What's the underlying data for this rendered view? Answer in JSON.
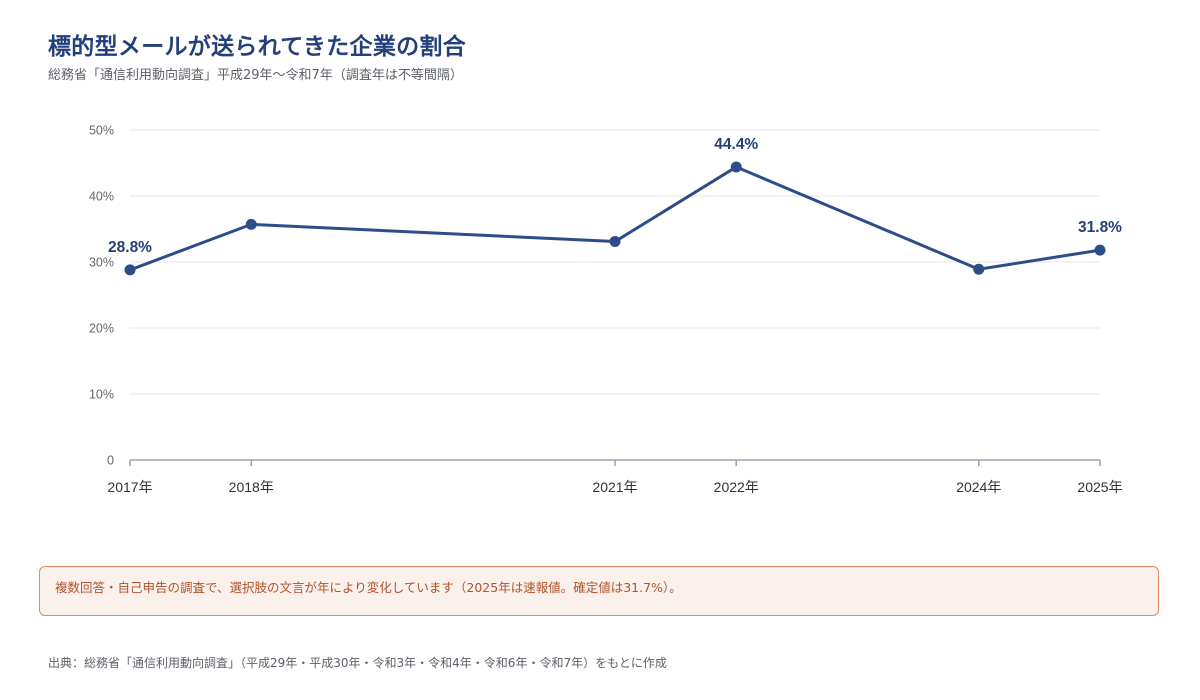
{
  "header": {
    "title": "標的型メールが送られてきた企業の割合",
    "subtitle": "総務省「通信利用動向調査」平成29年～令和7年（調査年は不等間隔）"
  },
  "chart_data": {
    "type": "line",
    "x": [
      2017,
      2018,
      2021,
      2022,
      2024,
      2025
    ],
    "x_tick_labels": [
      "2017年",
      "2018年",
      "2021年",
      "2022年",
      "2024年",
      "2025年"
    ],
    "series": [
      {
        "values": [
          28.8,
          35.7,
          33.1,
          44.4,
          28.9,
          31.8
        ]
      }
    ],
    "data_labels": [
      {
        "index": 0,
        "text": "28.8%"
      },
      {
        "index": 3,
        "text": "44.4%"
      },
      {
        "index": 5,
        "text": "31.8%"
      }
    ],
    "ylim": [
      0,
      50
    ],
    "y_ticks": [
      0,
      10,
      20,
      30,
      40,
      50
    ],
    "y_tick_labels": [
      "0",
      "10%",
      "20%",
      "30%",
      "40%",
      "50%"
    ],
    "xlabel": "",
    "ylabel": "",
    "grid": true,
    "colors": {
      "line": "#2d4d8a",
      "grid": "#ececec",
      "axis": "#9aa3b0",
      "tick_text": "#666666",
      "label_text": "#24407a"
    }
  },
  "note": {
    "text": "複数回答・自己申告の調査で、選択肢の文言が年により変化しています（2025年は速報値。確定値は31.7%）。"
  },
  "source": {
    "text": "出典：総務省「通信利用動向調査」（平成29年・平成30年・令和3年・令和4年・令和6年・令和7年）をもとに作成"
  }
}
